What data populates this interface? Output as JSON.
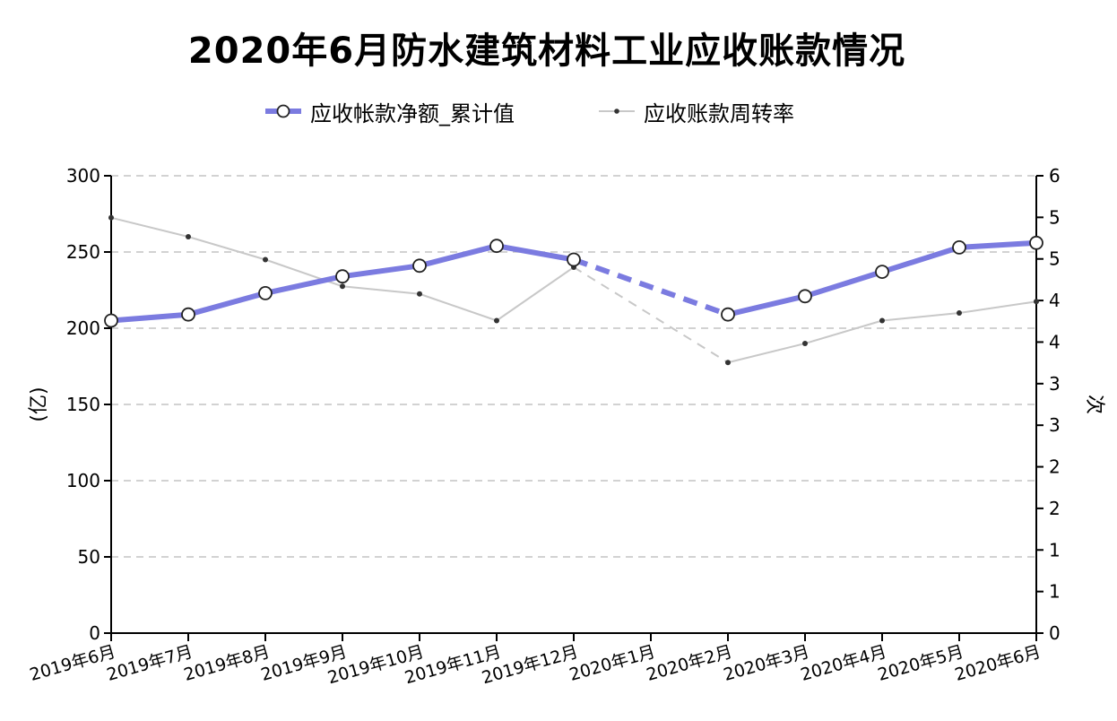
{
  "chart_data": {
    "type": "line",
    "title": "2020年6月防水建筑材料工业应收账款情况",
    "categories": [
      "2019年6月",
      "2019年7月",
      "2019年8月",
      "2019年9月",
      "2019年10月",
      "2019年11月",
      "2019年12月",
      "2020年1月",
      "2020年2月",
      "2020年3月",
      "2020年4月",
      "2020年5月",
      "2020年6月"
    ],
    "series": [
      {
        "name": "应收帐款净额_累计值",
        "axis": "left",
        "color": "#7b7be0",
        "marker": "open-circle",
        "values": [
          205,
          209,
          223,
          234,
          241,
          254,
          245,
          null,
          209,
          221,
          237,
          253,
          256
        ]
      },
      {
        "name": "应收账款周转率",
        "axis": "right",
        "color": "#c8c8c8",
        "marker": "small-dot",
        "values": [
          5.45,
          5.2,
          4.9,
          4.55,
          4.45,
          4.1,
          4.8,
          null,
          3.55,
          3.8,
          4.1,
          4.2,
          4.35
        ]
      }
    ],
    "y_left": {
      "label": "(亿)",
      "ylim": [
        0,
        300
      ],
      "ticks": [
        "0",
        "50",
        "100",
        "150",
        "200",
        "250",
        "300"
      ]
    },
    "y_right": {
      "label": "次",
      "ylim": [
        0,
        6
      ],
      "ticks": [
        "0",
        "1",
        "1",
        "2",
        "2",
        "3",
        "3",
        "4",
        "4",
        "5",
        "5",
        "6"
      ]
    },
    "grid": "horizontal-dashed",
    "legend_position": "top-center",
    "gap_style": "dashed"
  }
}
